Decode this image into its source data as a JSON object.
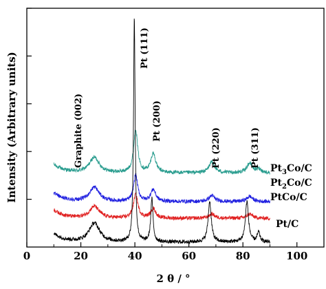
{
  "chart_data": {
    "type": "line",
    "xlabel": "2 θ / °",
    "ylabel": "Intensity (Arbitrary units)",
    "xlim": [
      0,
      110
    ],
    "ylim": [
      0,
      100
    ],
    "x_ticks": [
      "0",
      "20",
      "40",
      "60",
      "80",
      "100"
    ],
    "y_tick_values": [
      20,
      40,
      60,
      80,
      100
    ],
    "y_tick_labels_shown": false,
    "grid": false,
    "legend": "direct labels at right end of each curve",
    "peak_annotations": [
      {
        "label": "Graphite (002)",
        "x": 26
      },
      {
        "label": "Pt (111)",
        "x": 40
      },
      {
        "label": "Pt (200)",
        "x": 46.5
      },
      {
        "label": "Pt (220)",
        "x": 68
      },
      {
        "label": "Pt (311)",
        "x": 82
      }
    ],
    "series": [
      {
        "name_base": "Pt",
        "name_sub": "3",
        "name_rest": "Co/C",
        "color": "#2a9d8f",
        "baseline": 31,
        "peaks": [
          {
            "x": 25,
            "h": 6.5,
            "w": 2.2
          },
          {
            "x": 40.3,
            "h": 18,
            "w": 0.9
          },
          {
            "x": 46.8,
            "h": 8,
            "w": 1.1
          },
          {
            "x": 68.5,
            "h": 4.5,
            "w": 1.3
          },
          {
            "x": 82.5,
            "h": 4,
            "w": 1.3
          },
          {
            "x": 86,
            "h": 1.5,
            "w": 1
          }
        ]
      },
      {
        "name_base": "Pt",
        "name_sub": "2",
        "name_rest": "Co/C",
        "color": "#2020e0",
        "baseline": 19,
        "peaks": [
          {
            "x": 25,
            "h": 6,
            "w": 2.2
          },
          {
            "x": 40.3,
            "h": 11,
            "w": 0.9
          },
          {
            "x": 46.8,
            "h": 5,
            "w": 1.1
          },
          {
            "x": 68.5,
            "h": 2.5,
            "w": 1.3
          },
          {
            "x": 82.5,
            "h": 2.2,
            "w": 1.3
          }
        ]
      },
      {
        "name_base": "PtCo/C",
        "name_sub": "",
        "name_rest": "",
        "color": "#e02020",
        "baseline": 12,
        "peaks": [
          {
            "x": 25,
            "h": 5,
            "w": 2.2
          },
          {
            "x": 40.3,
            "h": 10,
            "w": 1.0
          },
          {
            "x": 46.8,
            "h": 4,
            "w": 1.1
          },
          {
            "x": 68.5,
            "h": 1.8,
            "w": 1.3
          },
          {
            "x": 82.5,
            "h": 1.8,
            "w": 1.3
          }
        ]
      },
      {
        "name_base": "Pt/C",
        "name_sub": "",
        "name_rest": "",
        "color": "#000000",
        "baseline": 2,
        "peaks": [
          {
            "x": 25,
            "h": 8,
            "w": 2.4
          },
          {
            "x": 39.8,
            "h": 94,
            "w": 0.35
          },
          {
            "x": 46.3,
            "h": 18,
            "w": 0.5
          },
          {
            "x": 67.7,
            "h": 17,
            "w": 0.7
          },
          {
            "x": 81.5,
            "h": 17,
            "w": 0.7
          },
          {
            "x": 85.8,
            "h": 4,
            "w": 0.6
          }
        ]
      }
    ]
  }
}
